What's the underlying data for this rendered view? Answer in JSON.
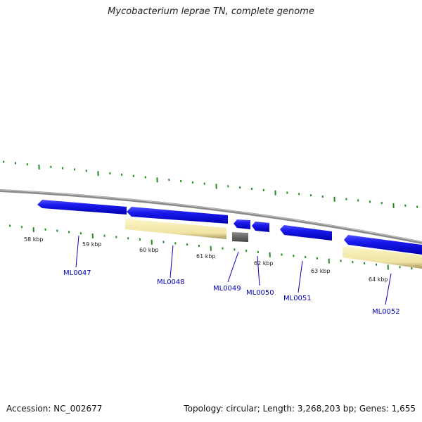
{
  "title": "Mycobacterium leprae TN, complete genome",
  "footer": {
    "accession": "Accession: NC_002677",
    "summary": "Topology: circular; Length: 3,268,203 bp; Genes: 1,655"
  },
  "colors": {
    "backbone": "#888888",
    "gene_forward": "#1a1aee",
    "gene_pale": "#f2e8a8",
    "gene_grey": "#666666",
    "tick": "#228b22",
    "label": "#0000bb"
  },
  "kbp_labels": [
    "58 kbp",
    "59 kbp",
    "60 kbp",
    "61 kbp",
    "62 kbp",
    "63 kbp",
    "64 kbp"
  ],
  "genes": [
    {
      "id": "ML0047",
      "label": "ML0047"
    },
    {
      "id": "ML0048",
      "label": "ML0048"
    },
    {
      "id": "ML0049",
      "label": "ML0049"
    },
    {
      "id": "ML0050",
      "label": "ML0050"
    },
    {
      "id": "ML0051",
      "label": "ML0051"
    },
    {
      "id": "ML0052",
      "label": "ML0052"
    }
  ]
}
